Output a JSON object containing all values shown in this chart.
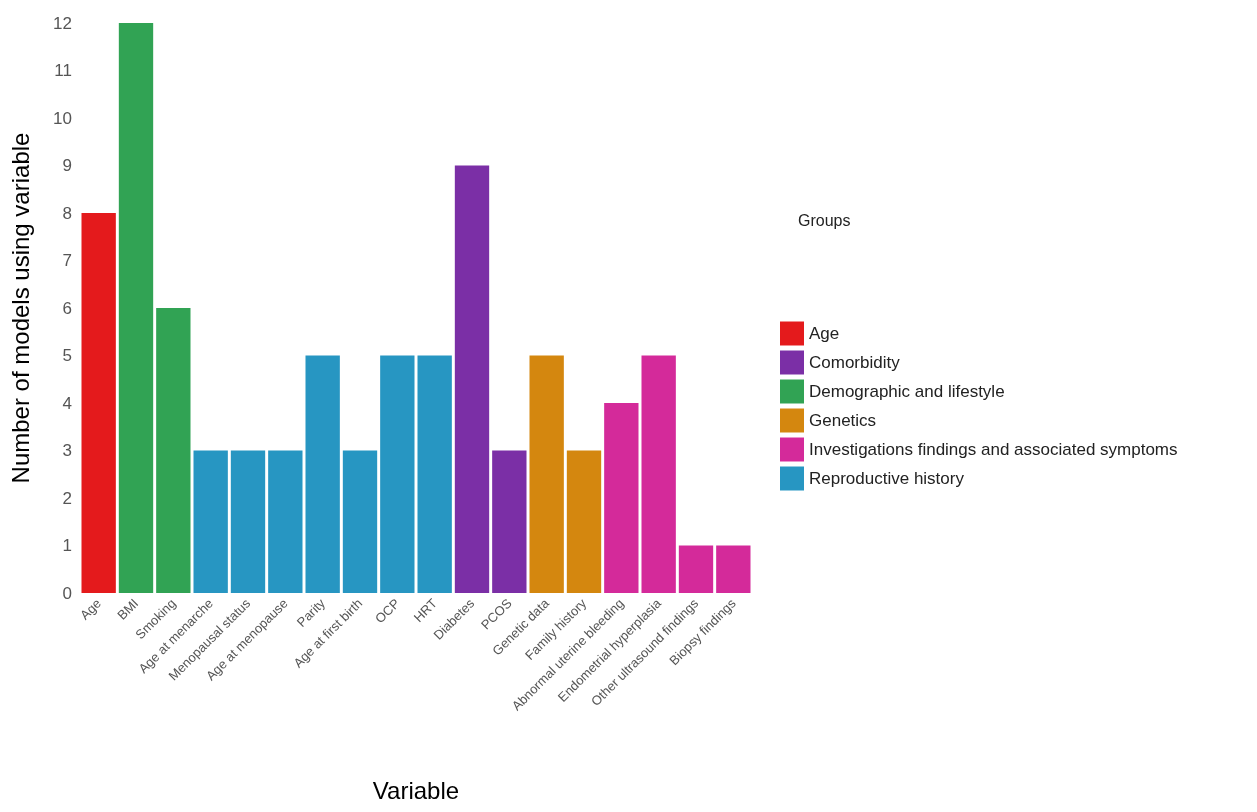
{
  "chart_data": {
    "type": "bar",
    "xlabel": "Variable",
    "ylabel": "Number of models using variable",
    "legend_title": "Groups",
    "categories": [
      "Age",
      "BMI",
      "Smoking",
      "Age at menarche",
      "Menopausal status",
      "Age at menopause",
      "Parity",
      "Age at first birth",
      "OCP",
      "HRT",
      "Diabetes",
      "PCOS",
      "Genetic data",
      "Family history",
      "Abnormal uterine bleeding",
      "Endometrial hyperplasia",
      "Other ultrasound findings",
      "Biopsy findings"
    ],
    "series": [
      {
        "name": "Age",
        "color": "#e41a1c",
        "values": [
          8,
          null,
          null,
          null,
          null,
          null,
          null,
          null,
          null,
          null,
          null,
          null,
          null,
          null,
          null,
          null,
          null,
          null
        ]
      },
      {
        "name": "Comorbidity",
        "color": "#7b2fa6",
        "values": [
          null,
          null,
          null,
          null,
          null,
          null,
          null,
          null,
          null,
          null,
          9,
          3,
          null,
          null,
          null,
          null,
          null,
          null
        ]
      },
      {
        "name": "Demographic and lifestyle",
        "color": "#31a354",
        "values": [
          null,
          12,
          6,
          null,
          null,
          null,
          null,
          null,
          null,
          null,
          null,
          null,
          null,
          null,
          null,
          null,
          null,
          null
        ]
      },
      {
        "name": "Genetics",
        "color": "#d4870f",
        "values": [
          null,
          null,
          null,
          null,
          null,
          null,
          null,
          null,
          null,
          null,
          null,
          null,
          5,
          3,
          null,
          null,
          null,
          null
        ]
      },
      {
        "name": "Investigations findings and associated symptoms",
        "color": "#d42a9a",
        "values": [
          null,
          null,
          null,
          null,
          null,
          null,
          null,
          null,
          null,
          null,
          null,
          null,
          null,
          null,
          4,
          5,
          1,
          1
        ]
      },
      {
        "name": "Reproductive history",
        "color": "#2796c2",
        "values": [
          null,
          null,
          null,
          3,
          3,
          3,
          5,
          3,
          5,
          5,
          null,
          null,
          null,
          null,
          null,
          null,
          null,
          null
        ]
      }
    ],
    "ylim": [
      0,
      12
    ],
    "yticks": [
      0,
      1,
      2,
      3,
      4,
      5,
      6,
      7,
      8,
      9,
      10,
      11,
      12
    ],
    "grid": false,
    "legend": "right"
  }
}
